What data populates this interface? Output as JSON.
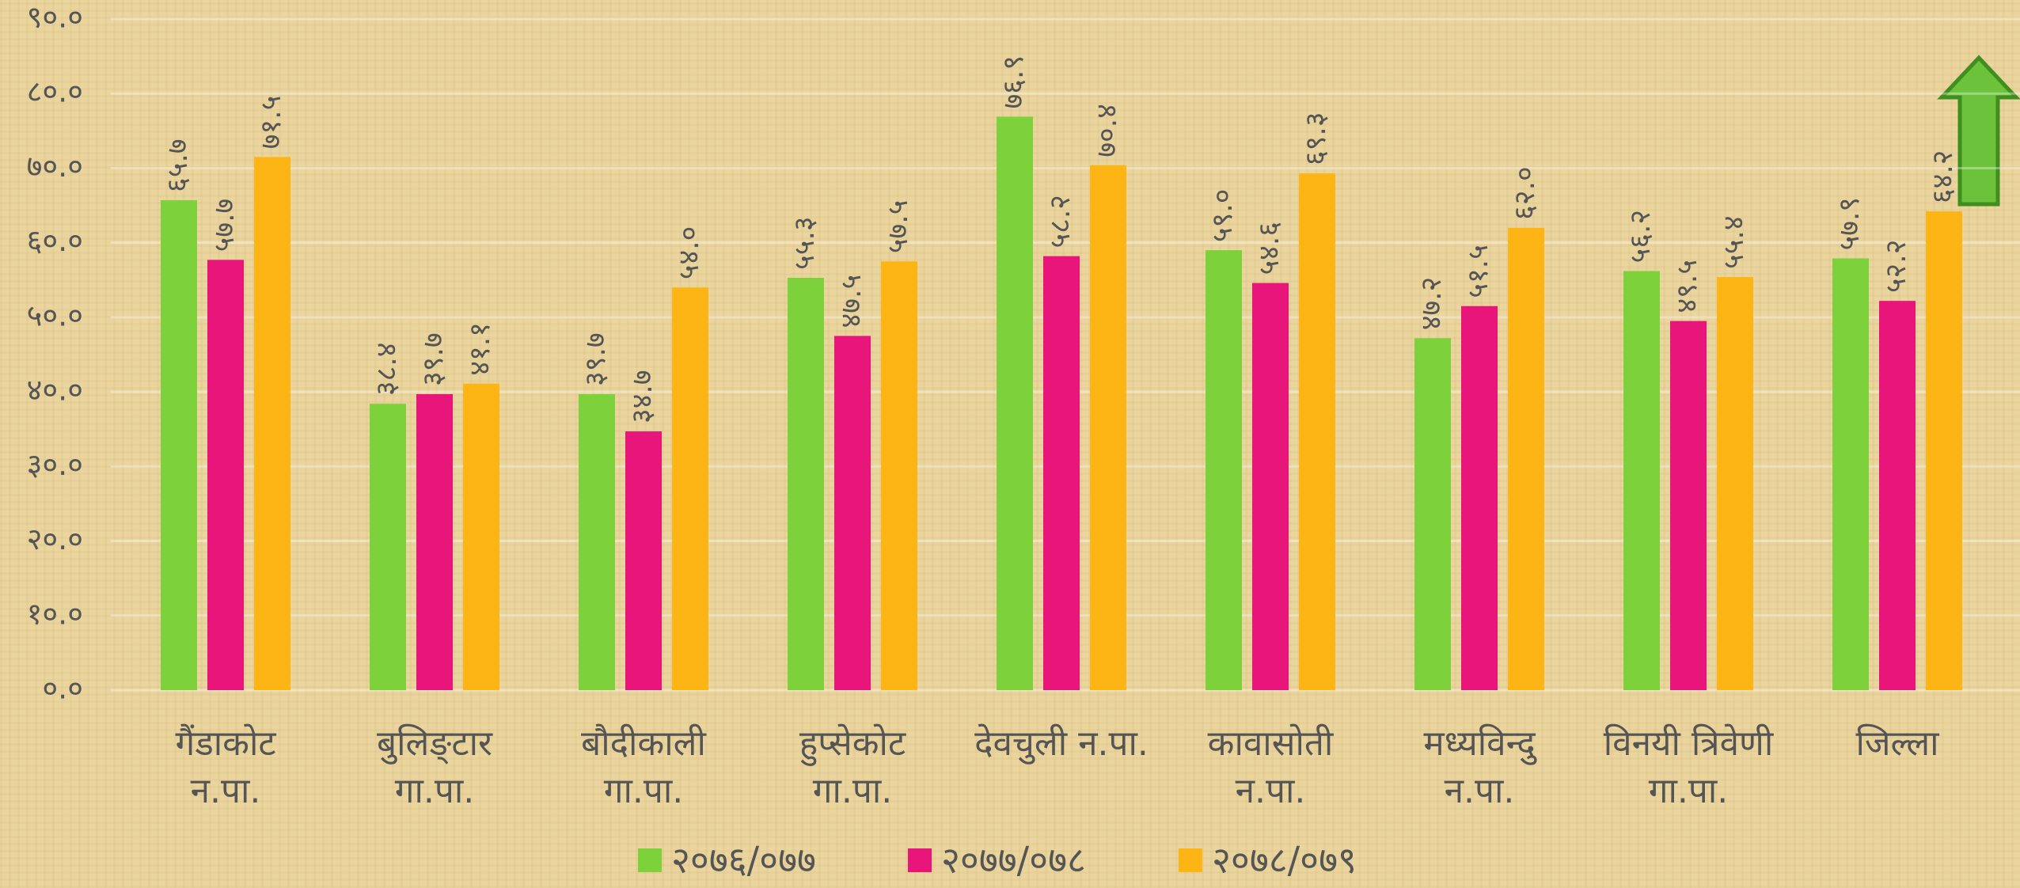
{
  "chart_data": {
    "type": "bar",
    "categories": [
      "गैंडाकोट\nन.पा.",
      "बुलिङ्टार\nगा.पा.",
      "बौदीकाली\nगा.पा.",
      "हुप्सेकोट\nगा.पा.",
      "देवचुली न.पा.",
      "कावासोती\nन.पा.",
      "मध्यविन्दु\nन.पा.",
      "विनयी त्रिवेणी\nगा.पा.",
      "जिल्ला"
    ],
    "series": [
      {
        "name": "२०७६/०७७",
        "color": "#7dd13a",
        "values": [
          65.7,
          38.4,
          39.7,
          55.3,
          76.9,
          59.0,
          47.2,
          56.2,
          57.9
        ],
        "value_labels": [
          "६५.७",
          "३८.४",
          "३९.७",
          "५५.३",
          "७६.९",
          "५९.०",
          "४७.२",
          "५६.२",
          "५७.९"
        ]
      },
      {
        "name": "२०७७/०७८",
        "color": "#e8157a",
        "values": [
          57.7,
          39.7,
          34.7,
          47.5,
          58.2,
          54.6,
          51.5,
          49.5,
          52.2
        ],
        "value_labels": [
          "५७.७",
          "३९.७",
          "३४.७",
          "४७.५",
          "५८.२",
          "५४.६",
          "५१.५",
          "४९.५",
          "५२.२"
        ]
      },
      {
        "name": "२०७८/०७९",
        "color": "#fdb515",
        "values": [
          71.5,
          41.1,
          54.0,
          57.5,
          70.4,
          69.3,
          62.0,
          55.4,
          64.2
        ],
        "value_labels": [
          "७१.५",
          "४१.१",
          "५४.०",
          "५७.५",
          "७०.४",
          "६९.३",
          "६२.०",
          "५५.४",
          "६४.२"
        ]
      }
    ],
    "ylim": [
      0,
      90
    ],
    "yticks": [
      {
        "value": 0,
        "label": "०.०"
      },
      {
        "value": 10,
        "label": "१०.०"
      },
      {
        "value": 20,
        "label": "२०.०"
      },
      {
        "value": 30,
        "label": "३०.०"
      },
      {
        "value": 40,
        "label": "४०.०"
      },
      {
        "value": 50,
        "label": "५०.०"
      },
      {
        "value": 60,
        "label": "६०.०"
      },
      {
        "value": 70,
        "label": "७०.०"
      },
      {
        "value": 80,
        "label": "८०.०"
      },
      {
        "value": 90,
        "label": "९०.०"
      }
    ],
    "grid": true,
    "legend": "bottom"
  }
}
